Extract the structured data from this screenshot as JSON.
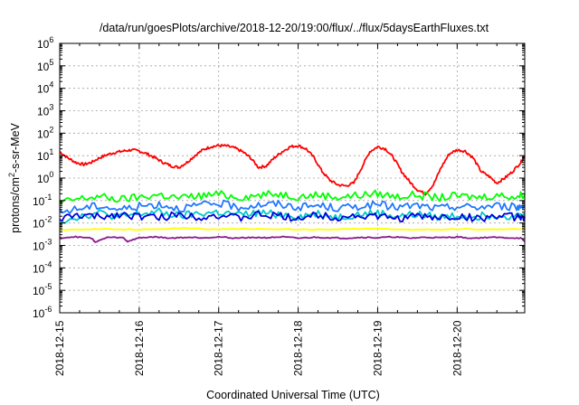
{
  "chart_data": {
    "type": "line",
    "title": "/data/run/goesPlots/archive/2018-12-20/19:00/flux/../flux/5daysEarthFluxes.txt",
    "xlabel": "Coordinated Universal Time (UTC)",
    "ylabel": {
      "base": "protons/cm",
      "sup": "2",
      "rest": "-s-sr-MeV"
    },
    "yscale": "log",
    "ylim_exp": [
      -6,
      6
    ],
    "xlim_days": [
      0,
      5.85
    ],
    "x_ticks": [
      {
        "day": 0,
        "label": "2018-12-15"
      },
      {
        "day": 1,
        "label": "2018-12-16"
      },
      {
        "day": 2,
        "label": "2018-12-17"
      },
      {
        "day": 3,
        "label": "2018-12-18"
      },
      {
        "day": 4,
        "label": "2018-12-19"
      },
      {
        "day": 5,
        "label": "2018-12-20"
      }
    ],
    "y_ticks": [
      {
        "exp": 6,
        "label": "10",
        "sup": "6"
      },
      {
        "exp": 5,
        "label": "10",
        "sup": "5"
      },
      {
        "exp": 4,
        "label": "10",
        "sup": "4"
      },
      {
        "exp": 3,
        "label": "10",
        "sup": "3"
      },
      {
        "exp": 2,
        "label": "10",
        "sup": "2"
      },
      {
        "exp": 1,
        "label": "10",
        "sup": "1"
      },
      {
        "exp": 0,
        "label": "10",
        "sup": "0"
      },
      {
        "exp": -1,
        "label": "10",
        "sup": "-1"
      },
      {
        "exp": -2,
        "label": "10",
        "sup": "-2"
      },
      {
        "exp": -3,
        "label": "10",
        "sup": "-3"
      },
      {
        "exp": -4,
        "label": "10",
        "sup": "-4"
      },
      {
        "exp": -5,
        "label": "10",
        "sup": "-5"
      },
      {
        "exp": -6,
        "label": "10",
        "sup": "-6"
      }
    ],
    "grid": true,
    "series": [
      {
        "color": "#ff0000",
        "x": [
          0,
          0.1,
          0.2,
          0.3,
          0.4,
          0.5,
          0.6,
          0.7,
          0.8,
          0.9,
          1.0,
          1.1,
          1.2,
          1.3,
          1.4,
          1.5,
          1.6,
          1.7,
          1.8,
          1.9,
          2.0,
          2.1,
          2.2,
          2.3,
          2.4,
          2.5,
          2.6,
          2.7,
          2.8,
          2.9,
          3.0,
          3.1,
          3.2,
          3.3,
          3.4,
          3.5,
          3.6,
          3.7,
          3.8,
          3.9,
          4.0,
          4.1,
          4.2,
          4.3,
          4.4,
          4.5,
          4.6,
          4.7,
          4.8,
          4.9,
          5.0,
          5.1,
          5.2,
          5.3,
          5.4,
          5.5,
          5.6,
          5.7,
          5.8,
          5.85
        ],
        "y": [
          15,
          8,
          5,
          4,
          5,
          8,
          11,
          14,
          16,
          18,
          16,
          12,
          8,
          5,
          3.5,
          3,
          5,
          10,
          18,
          25,
          28,
          27,
          22,
          15,
          8,
          3,
          3.5,
          8,
          15,
          25,
          28,
          20,
          8,
          2,
          0.8,
          0.5,
          0.45,
          0.6,
          3,
          15,
          25,
          20,
          8,
          2,
          0.7,
          0.3,
          0.2,
          0.5,
          3,
          12,
          18,
          16,
          8,
          2,
          1.2,
          0.6,
          1,
          2,
          5,
          10
        ]
      },
      {
        "color": "#00ff00",
        "x": [
          0,
          0.25,
          0.5,
          0.75,
          1.0,
          1.25,
          1.5,
          1.75,
          2.0,
          2.25,
          2.5,
          2.75,
          3.0,
          3.25,
          3.5,
          3.75,
          4.0,
          4.25,
          4.5,
          4.75,
          5.0,
          5.25,
          5.5,
          5.75,
          5.85
        ],
        "y": [
          0.08,
          0.12,
          0.15,
          0.11,
          0.14,
          0.18,
          0.13,
          0.16,
          0.19,
          0.14,
          0.17,
          0.2,
          0.15,
          0.18,
          0.14,
          0.17,
          0.2,
          0.15,
          0.18,
          0.13,
          0.16,
          0.14,
          0.17,
          0.15,
          0.2
        ]
      },
      {
        "color": "#1f78ff",
        "x": [
          0,
          0.25,
          0.5,
          0.75,
          1.0,
          1.25,
          1.5,
          1.75,
          2.0,
          2.25,
          2.5,
          2.75,
          3.0,
          3.25,
          3.5,
          3.75,
          4.0,
          4.25,
          4.5,
          4.75,
          5.0,
          5.25,
          5.5,
          5.75,
          5.85
        ],
        "y": [
          0.03,
          0.045,
          0.06,
          0.04,
          0.055,
          0.07,
          0.045,
          0.06,
          0.075,
          0.05,
          0.065,
          0.07,
          0.05,
          0.06,
          0.045,
          0.055,
          0.065,
          0.05,
          0.06,
          0.045,
          0.055,
          0.05,
          0.06,
          0.05,
          0.06
        ]
      },
      {
        "color": "#00c8c8",
        "x": [
          0,
          0.25,
          0.5,
          0.75,
          1.0,
          1.25,
          1.5,
          1.75,
          2.0,
          2.25,
          2.5,
          2.75,
          3.0,
          3.25,
          3.5,
          3.75,
          4.0,
          4.25,
          4.5,
          4.75,
          5.0,
          5.25,
          5.5,
          5.75,
          5.85
        ],
        "y": [
          0.012,
          0.02,
          0.028,
          0.018,
          0.025,
          0.03,
          0.02,
          0.026,
          0.03,
          0.022,
          0.028,
          0.025,
          0.02,
          0.026,
          0.018,
          0.024,
          0.028,
          0.02,
          0.024,
          0.018,
          0.022,
          0.02,
          0.024,
          0.02,
          0.022
        ]
      },
      {
        "color": "#0000dd",
        "x": [
          0,
          0.25,
          0.5,
          0.75,
          1.0,
          1.25,
          1.5,
          1.75,
          2.0,
          2.25,
          2.5,
          2.75,
          3.0,
          3.25,
          3.5,
          3.75,
          4.0,
          4.25,
          4.5,
          4.75,
          5.0,
          5.25,
          5.5,
          5.75,
          5.85
        ],
        "y": [
          0.015,
          0.022,
          0.018,
          0.025,
          0.02,
          0.017,
          0.024,
          0.019,
          0.022,
          0.016,
          0.023,
          0.02,
          0.017,
          0.022,
          0.018,
          0.021,
          0.019,
          0.016,
          0.02,
          0.017,
          0.019,
          0.016,
          0.02,
          0.018,
          0.019
        ]
      },
      {
        "color": "#ffff00",
        "x": [
          0,
          0.5,
          1.0,
          1.5,
          2.0,
          2.5,
          3.0,
          3.5,
          4.0,
          4.5,
          5.0,
          5.5,
          5.85
        ],
        "y": [
          0.005,
          0.0055,
          0.005,
          0.0058,
          0.0052,
          0.0056,
          0.005,
          0.0054,
          0.0055,
          0.005,
          0.0054,
          0.0052,
          0.0055
        ]
      },
      {
        "color": "#8b1a8b",
        "x": [
          0,
          0.2,
          0.4,
          0.45,
          0.6,
          0.8,
          0.85,
          1.0,
          1.2,
          1.4,
          1.6,
          1.8,
          2.0,
          2.2,
          2.4,
          2.6,
          2.8,
          3.0,
          3.2,
          3.4,
          3.6,
          3.8,
          4.0,
          4.2,
          4.4,
          4.6,
          4.8,
          5.0,
          5.2,
          5.4,
          5.6,
          5.8,
          5.85
        ],
        "y": [
          0.0022,
          0.0024,
          0.0021,
          0.0014,
          0.0023,
          0.0022,
          0.0015,
          0.0022,
          0.0024,
          0.0021,
          0.0023,
          0.0022,
          0.0024,
          0.0021,
          0.0023,
          0.0022,
          0.0024,
          0.0021,
          0.0023,
          0.0022,
          0.0021,
          0.0023,
          0.0022,
          0.0024,
          0.0021,
          0.0023,
          0.0022,
          0.0024,
          0.0021,
          0.0023,
          0.0022,
          0.0021,
          0.0015
        ]
      }
    ]
  }
}
